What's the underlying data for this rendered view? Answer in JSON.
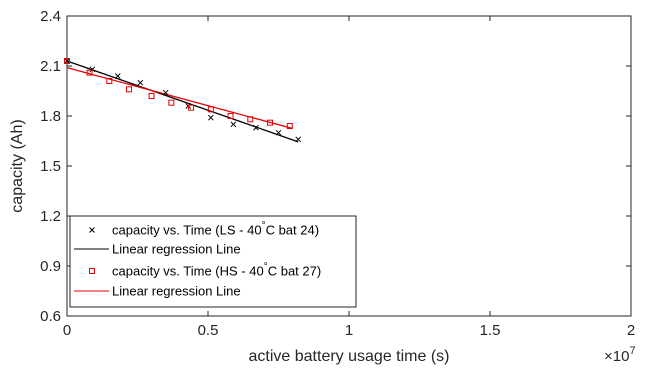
{
  "chart_data": {
    "type": "scatter",
    "title": "",
    "xlabel": "active battery usage time (s)",
    "ylabel": "capacity (Ah)",
    "x_exponent_label": "×10",
    "x_exponent_power": "7",
    "x_scale_multiplier": 10000000,
    "xlim": [
      0,
      2
    ],
    "ylim": [
      0.6,
      2.4
    ],
    "xticks": [
      0,
      0.5,
      1,
      1.5,
      2
    ],
    "xtick_labels": [
      "0",
      "0.5",
      "1",
      "1.5",
      "2"
    ],
    "yticks": [
      0.6,
      0.9,
      1.2,
      1.5,
      1.8,
      2.1,
      2.4
    ],
    "ytick_labels": [
      "0.6",
      "0.9",
      "1.2",
      "1.5",
      "1.8",
      "2.1",
      "2.4"
    ],
    "grid": false,
    "legend_position": "bottom-left",
    "series": [
      {
        "name": "capacity vs. Time (LS - 40°C bat 24)",
        "name_parts": [
          "capacity vs. Time (LS - 40",
          "°",
          "C bat 24)"
        ],
        "type": "scatter",
        "marker": "x",
        "color": "#000000",
        "x": [
          0,
          0.09,
          0.18,
          0.26,
          0.35,
          0.43,
          0.51,
          0.59,
          0.67,
          0.75,
          0.82
        ],
        "y": [
          2.13,
          2.08,
          2.04,
          2.0,
          1.94,
          1.86,
          1.79,
          1.75,
          1.73,
          1.7,
          1.66
        ]
      },
      {
        "name": "Linear regression Line",
        "type": "line",
        "color": "#000000",
        "x": [
          0,
          0.82
        ],
        "y": [
          2.13,
          1.645
        ]
      },
      {
        "name": "capacity vs. Time (HS - 40°C bat 27)",
        "name_parts": [
          "capacity vs. Time (HS - 40",
          "°",
          "C bat 27)"
        ],
        "type": "scatter",
        "marker": "square",
        "color": "#e60000",
        "x": [
          0,
          0.08,
          0.15,
          0.22,
          0.3,
          0.37,
          0.44,
          0.51,
          0.58,
          0.65,
          0.72,
          0.79
        ],
        "y": [
          2.13,
          2.06,
          2.01,
          1.96,
          1.92,
          1.88,
          1.85,
          1.84,
          1.8,
          1.78,
          1.76,
          1.74
        ]
      },
      {
        "name": "Linear regression Line",
        "type": "line",
        "color": "#e60000",
        "x": [
          0,
          0.8
        ],
        "y": [
          2.09,
          1.725
        ]
      }
    ]
  }
}
